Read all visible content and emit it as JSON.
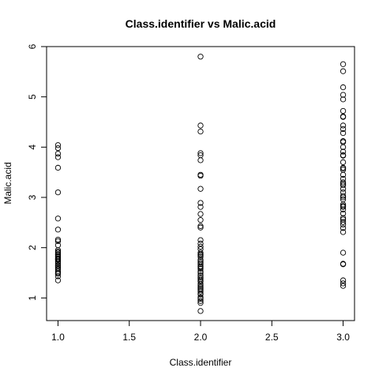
{
  "chart_data": {
    "type": "scatter",
    "title": "Class.identifier vs Malic.acid",
    "xlabel": "Class.identifier",
    "ylabel": "Malic.acid",
    "xlim": [
      0.92,
      3.08
    ],
    "ylim": [
      0.55,
      6.0
    ],
    "xticks": [
      "1.0",
      "1.5",
      "2.0",
      "2.5",
      "3.0"
    ],
    "yticks": [
      "1",
      "2",
      "3",
      "4",
      "5",
      "6"
    ],
    "grid": false,
    "series": [
      {
        "x": [
          1,
          1,
          1,
          1,
          1,
          1,
          1,
          1,
          1,
          1,
          1,
          1,
          1,
          1,
          1,
          1,
          1,
          1,
          1,
          1,
          1,
          1,
          1,
          1,
          1,
          1,
          1,
          1,
          1,
          1,
          1,
          1,
          1
        ],
        "y": [
          4.04,
          3.98,
          3.87,
          3.8,
          3.59,
          3.1,
          2.58,
          2.36,
          2.16,
          2.13,
          2.05,
          1.95,
          1.9,
          1.87,
          1.83,
          1.81,
          1.78,
          1.76,
          1.73,
          1.71,
          1.68,
          1.65,
          1.63,
          1.6,
          1.57,
          1.53,
          1.5,
          1.48,
          1.43,
          1.35,
          1.77,
          1.86,
          1.92
        ]
      },
      {
        "x": [
          2,
          2,
          2,
          2,
          2,
          2,
          2,
          2,
          2,
          2,
          2,
          2,
          2,
          2,
          2,
          2,
          2,
          2,
          2,
          2,
          2,
          2,
          2,
          2,
          2,
          2,
          2,
          2,
          2,
          2,
          2,
          2,
          2,
          2,
          2,
          2,
          2,
          2,
          2,
          2,
          2,
          2,
          2,
          2,
          2,
          2,
          2,
          2,
          2,
          2
        ],
        "y": [
          5.8,
          4.43,
          4.31,
          3.88,
          3.84,
          3.74,
          3.45,
          3.43,
          3.17,
          2.89,
          2.81,
          2.67,
          2.55,
          2.43,
          2.4,
          2.15,
          2.08,
          2.02,
          1.97,
          1.9,
          1.85,
          1.82,
          1.76,
          1.7,
          1.67,
          1.63,
          1.61,
          1.58,
          1.53,
          1.5,
          1.45,
          1.41,
          1.38,
          1.35,
          1.33,
          1.28,
          1.25,
          1.19,
          1.16,
          1.13,
          1.09,
          1.07,
          1.01,
          0.98,
          0.94,
          0.9,
          0.74,
          1.73,
          1.87,
          1.22
        ]
      },
      {
        "x": [
          3,
          3,
          3,
          3,
          3,
          3,
          3,
          3,
          3,
          3,
          3,
          3,
          3,
          3,
          3,
          3,
          3,
          3,
          3,
          3,
          3,
          3,
          3,
          3,
          3,
          3,
          3,
          3,
          3,
          3,
          3,
          3,
          3,
          3,
          3,
          3,
          3,
          3,
          3,
          3,
          3,
          3,
          3,
          3,
          3,
          3,
          3,
          3
        ],
        "y": [
          5.65,
          5.51,
          5.19,
          5.04,
          4.95,
          4.72,
          4.6,
          4.36,
          4.28,
          4.12,
          4.1,
          3.91,
          3.84,
          3.83,
          3.7,
          3.59,
          3.55,
          3.45,
          3.3,
          3.27,
          3.24,
          3.17,
          3.1,
          3.03,
          2.96,
          2.86,
          2.81,
          2.76,
          2.59,
          2.56,
          2.51,
          2.46,
          2.39,
          2.31,
          1.9,
          1.68,
          1.67,
          1.35,
          1.29,
          1.24,
          4.0,
          3.0,
          2.68,
          3.37,
          2.83,
          4.61,
          3.58,
          4.43
        ]
      }
    ]
  }
}
